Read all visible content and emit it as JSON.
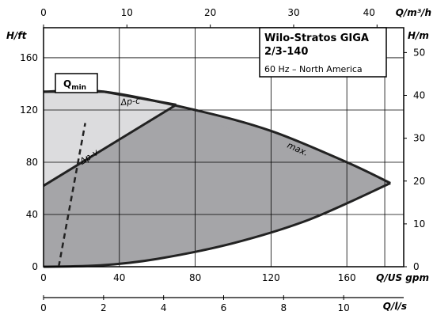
{
  "chart_data": {
    "type": "area",
    "title": "Wilo-Stratos GIGA",
    "title_line2": "2/3-140",
    "subtitle": "60 Hz – North America",
    "x_primary": {
      "label": "Q/US gpm",
      "range": [
        0,
        190
      ],
      "ticks": [
        0,
        40,
        80,
        120,
        160
      ]
    },
    "x_top": {
      "label": "Q/m³/h",
      "range": [
        0,
        43.2
      ],
      "ticks": [
        0,
        10,
        20,
        30,
        40
      ]
    },
    "x_bottom2": {
      "label": "Q/l/s",
      "range": [
        0,
        12
      ],
      "ticks": [
        0,
        2,
        4,
        6,
        8,
        10
      ]
    },
    "y_primary": {
      "label": "H/ft",
      "range": [
        0,
        183
      ],
      "ticks": [
        0,
        40,
        80,
        120,
        160
      ]
    },
    "y_right": {
      "label": "H/m",
      "range": [
        0,
        55.8
      ],
      "ticks": [
        0,
        10,
        20,
        30,
        40,
        50
      ]
    },
    "grid": true,
    "series": [
      {
        "name": "max.",
        "x": [
          0,
          32,
          80,
          120,
          160,
          183
        ],
        "y": [
          134,
          134,
          120,
          104,
          80,
          64
        ]
      },
      {
        "name": "Δp-c",
        "x": [
          0,
          32,
          70
        ],
        "y": [
          134,
          134,
          124
        ]
      },
      {
        "name": "Δp-v",
        "x": [
          0,
          70
        ],
        "y": [
          62,
          124
        ]
      },
      {
        "x": [
          0,
          30,
          60,
          100,
          140,
          183
        ],
        "y": [
          0,
          1,
          6,
          18,
          36,
          64
        ]
      }
    ],
    "annotations": {
      "qmin_main": "Q",
      "qmin_sub": "min",
      "qmin_x": [
        8,
        20
      ]
    }
  }
}
